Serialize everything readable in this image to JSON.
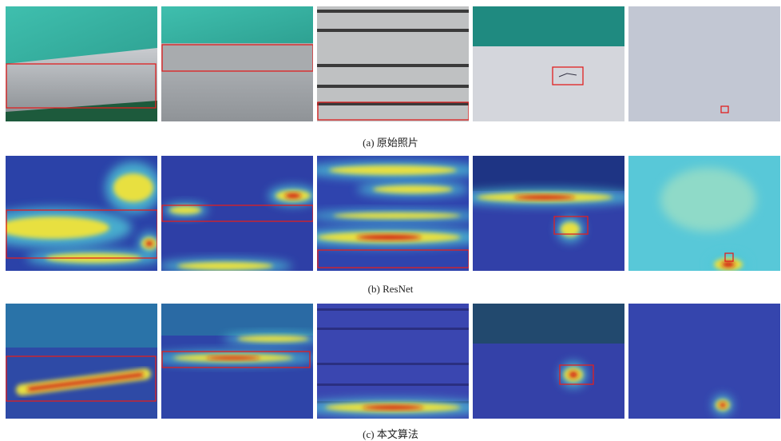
{
  "figure": {
    "rows": [
      {
        "caption": "(a) 原始照片"
      },
      {
        "caption": "(b) ResNet"
      },
      {
        "caption": "(c) 本文算法"
      }
    ]
  }
}
